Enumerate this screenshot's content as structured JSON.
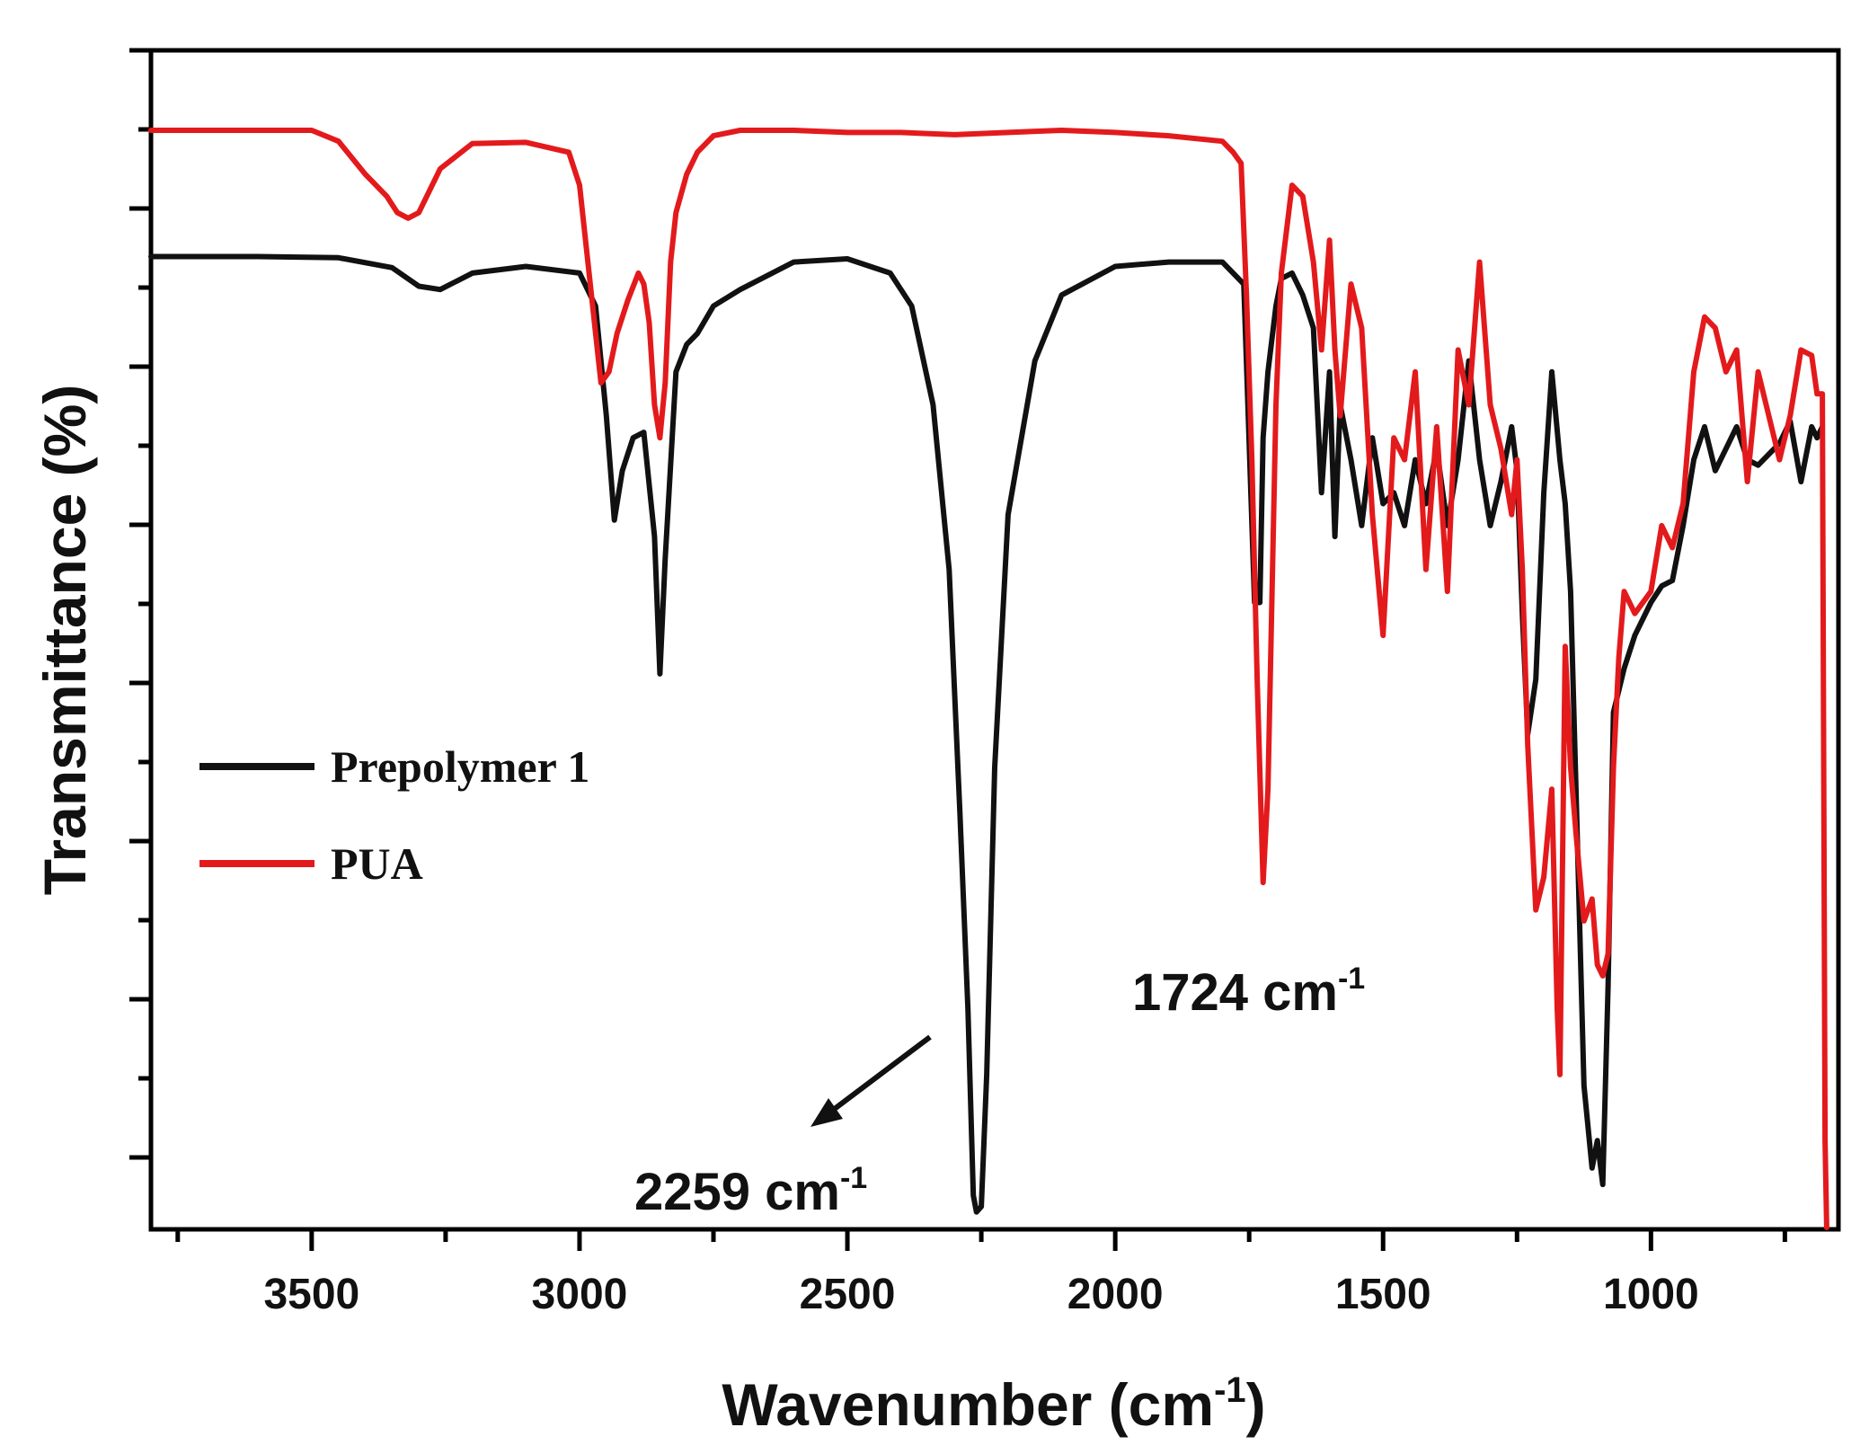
{
  "chart_data": {
    "type": "line",
    "title": "",
    "xlabel": "Wavenumber (cm",
    "xlabel_sup": "-1",
    "xlabel_close": ")",
    "ylabel": "Transmittance (%)",
    "xlim": [
      3800,
      650
    ],
    "x_reversed": true,
    "ylim": [
      0,
      100
    ],
    "x_ticks": [
      3500,
      3000,
      2500,
      2000,
      1500,
      1000
    ],
    "x_tick_labels": [
      "3500",
      "3000",
      "2500",
      "2000",
      "1500",
      "1000"
    ],
    "y_tick_labels_shown": false,
    "legend": {
      "position": "center-left",
      "entries": [
        {
          "label": "Prepolymer 1",
          "color": "#111111"
        },
        {
          "label": "PUA",
          "color": "#e31a1c"
        }
      ]
    },
    "annotations": [
      {
        "text": "2259 cm",
        "sup": "-1",
        "at_x": 2259,
        "arrow": true
      },
      {
        "text": "1724 cm",
        "sup": "-1",
        "at_x": 1724,
        "arrow": false
      }
    ],
    "series": [
      {
        "name": "Prepolymer 1",
        "color": "#111111",
        "x": [
          3800,
          3600,
          3450,
          3350,
          3300,
          3260,
          3200,
          3100,
          3000,
          2970,
          2950,
          2935,
          2920,
          2900,
          2880,
          2860,
          2850,
          2840,
          2820,
          2800,
          2780,
          2750,
          2700,
          2600,
          2500,
          2420,
          2380,
          2340,
          2310,
          2290,
          2275,
          2265,
          2259,
          2250,
          2240,
          2225,
          2200,
          2150,
          2100,
          2000,
          1900,
          1800,
          1760,
          1740,
          1730,
          1724,
          1715,
          1700,
          1690,
          1670,
          1650,
          1630,
          1615,
          1600,
          1590,
          1580,
          1560,
          1540,
          1520,
          1500,
          1480,
          1460,
          1440,
          1420,
          1400,
          1380,
          1360,
          1340,
          1320,
          1300,
          1280,
          1260,
          1250,
          1240,
          1230,
          1215,
          1200,
          1185,
          1170,
          1160,
          1150,
          1140,
          1125,
          1110,
          1100,
          1090,
          1080,
          1070,
          1060,
          1050,
          1030,
          1000,
          980,
          960,
          940,
          920,
          900,
          880,
          860,
          840,
          820,
          800,
          780,
          760,
          740,
          720,
          700,
          690,
          680
        ],
        "y": [
          88.5,
          88.5,
          88.4,
          87.5,
          85.8,
          85.5,
          87.0,
          87.6,
          87.0,
          84.0,
          74.0,
          64.5,
          69.0,
          72.0,
          72.5,
          63.0,
          50.5,
          61.0,
          78.0,
          80.5,
          81.5,
          84.0,
          85.5,
          88.0,
          88.3,
          87.0,
          84.0,
          75.0,
          60.0,
          38.0,
          20.0,
          3.0,
          1.5,
          2.0,
          14.0,
          42.0,
          65.0,
          79.0,
          85.0,
          87.6,
          88.0,
          88.0,
          86.0,
          57.0,
          57.0,
          72.0,
          78.0,
          84.0,
          86.5,
          87.0,
          85.0,
          82.0,
          67.0,
          78.0,
          63.0,
          75.0,
          70.0,
          64.0,
          72.0,
          66.0,
          67.0,
          64.0,
          70.0,
          66.0,
          71.0,
          64.0,
          70.0,
          79.0,
          70.0,
          64.0,
          68.0,
          73.0,
          69.0,
          56.0,
          45.0,
          50.0,
          67.0,
          78.0,
          70.0,
          66.0,
          58.0,
          40.0,
          13.0,
          5.5,
          8.0,
          4.0,
          22.0,
          47.0,
          49.0,
          51.0,
          54.0,
          57.0,
          58.5,
          59.0,
          64.0,
          70.0,
          73.0,
          69.0,
          71.0,
          73.0,
          70.0,
          69.5,
          70.5,
          71.5,
          73.5,
          68.0,
          73.0,
          72.0,
          73.0
        ]
      },
      {
        "name": "PUA",
        "color": "#e31a1c",
        "x": [
          3800,
          3500,
          3450,
          3400,
          3360,
          3340,
          3320,
          3300,
          3260,
          3200,
          3100,
          3020,
          3000,
          2980,
          2960,
          2945,
          2930,
          2910,
          2890,
          2880,
          2870,
          2860,
          2850,
          2840,
          2830,
          2820,
          2800,
          2780,
          2750,
          2700,
          2600,
          2500,
          2400,
          2300,
          2200,
          2100,
          2000,
          1900,
          1800,
          1780,
          1765,
          1755,
          1745,
          1735,
          1724,
          1715,
          1700,
          1690,
          1670,
          1650,
          1630,
          1615,
          1600,
          1590,
          1580,
          1560,
          1540,
          1520,
          1500,
          1480,
          1460,
          1440,
          1420,
          1400,
          1380,
          1360,
          1340,
          1320,
          1300,
          1280,
          1260,
          1250,
          1240,
          1230,
          1215,
          1200,
          1185,
          1175,
          1170,
          1160,
          1150,
          1140,
          1125,
          1110,
          1100,
          1090,
          1080,
          1070,
          1060,
          1050,
          1030,
          1000,
          980,
          960,
          940,
          920,
          900,
          880,
          860,
          840,
          820,
          800,
          780,
          760,
          740,
          720,
          700,
          690,
          680,
          675,
          672
        ],
        "y": [
          100,
          100,
          99.0,
          96.0,
          94.0,
          92.5,
          92.0,
          92.5,
          96.5,
          98.8,
          98.9,
          98.0,
          95.0,
          86.0,
          77.0,
          78.0,
          81.5,
          84.5,
          87.0,
          86.0,
          82.5,
          75.0,
          72.0,
          77.0,
          88.0,
          92.5,
          96.0,
          98.0,
          99.5,
          100,
          100,
          99.8,
          99.8,
          99.6,
          99.8,
          100,
          99.8,
          99.5,
          99.0,
          98.0,
          97.0,
          85.0,
          70.0,
          50.0,
          31.5,
          40.0,
          75.0,
          87.0,
          95.0,
          94.0,
          88.0,
          80.0,
          90.0,
          80.0,
          74.0,
          86.0,
          82.0,
          65.0,
          54.0,
          72.0,
          70.0,
          78.0,
          60.0,
          73.0,
          58.0,
          80.0,
          75.0,
          88.0,
          75.0,
          71.0,
          65.0,
          70.0,
          60.0,
          44.0,
          29.0,
          32.0,
          40.0,
          20.0,
          14.0,
          53.0,
          42.0,
          36.0,
          28.0,
          30.0,
          24.0,
          23.0,
          25.0,
          42.0,
          52.0,
          58.0,
          56.0,
          58.0,
          64.0,
          62.0,
          66.0,
          78.0,
          83.0,
          82.0,
          78.0,
          80.0,
          68.0,
          78.0,
          74.0,
          70.0,
          74.0,
          80.0,
          79.5,
          76.0,
          76.0,
          8.0,
          0
        ]
      }
    ]
  }
}
